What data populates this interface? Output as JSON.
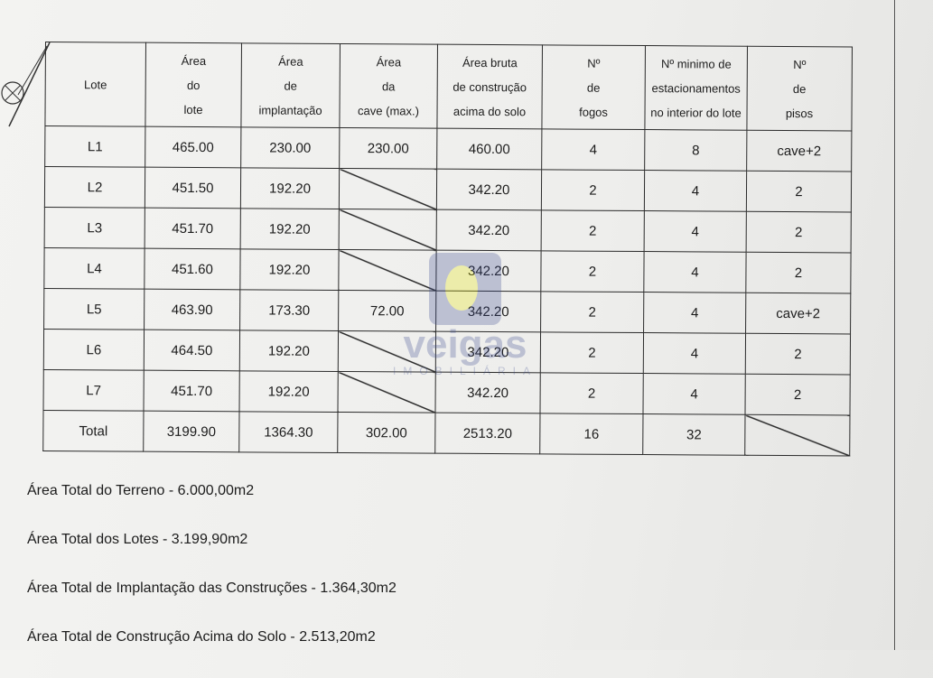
{
  "table": {
    "headers": [
      [
        "Lote"
      ],
      [
        "Área",
        "do",
        "lote"
      ],
      [
        "Área",
        "de",
        "implantação"
      ],
      [
        "Área",
        "da",
        "cave (max.)"
      ],
      [
        "Área bruta",
        "de construção",
        "acima do solo"
      ],
      [
        "Nº",
        "de",
        "fogos"
      ],
      [
        "Nº minimo de",
        "estacionamentos",
        "no interior do lote"
      ],
      [
        "Nº",
        "de",
        "pisos"
      ]
    ],
    "rows": [
      [
        "L1",
        "465.00",
        "230.00",
        "230.00",
        "460.00",
        "4",
        "8",
        "cave+2"
      ],
      [
        "L2",
        "451.50",
        "192.20",
        "",
        "342.20",
        "2",
        "4",
        "2"
      ],
      [
        "L3",
        "451.70",
        "192.20",
        "",
        "342.20",
        "2",
        "4",
        "2"
      ],
      [
        "L4",
        "451.60",
        "192.20",
        "",
        "342.20",
        "2",
        "4",
        "2"
      ],
      [
        "L5",
        "463.90",
        "173.30",
        "72.00",
        "342.20",
        "2",
        "4",
        "cave+2"
      ],
      [
        "L6",
        "464.50",
        "192.20",
        "",
        "342.20",
        "2",
        "4",
        "2"
      ],
      [
        "L7",
        "451.70",
        "192.20",
        "",
        "342.20",
        "2",
        "4",
        "2"
      ],
      [
        "Total",
        "3199.90",
        "1364.30",
        "302.00",
        "2513.20",
        "16",
        "32",
        ""
      ]
    ]
  },
  "notes": [
    "Área Total do Terreno - 6.000,00m2",
    "Área Total dos Lotes - 3.199,90m2",
    "Área Total de Implantação das Construções - 1.364,30m2",
    "Área Total de Construção Acima do Solo - 2.513,20m2"
  ],
  "watermark": {
    "name": "veigas",
    "sub": "IMOBILIÁRIA",
    "color": "#3b4a8f"
  }
}
